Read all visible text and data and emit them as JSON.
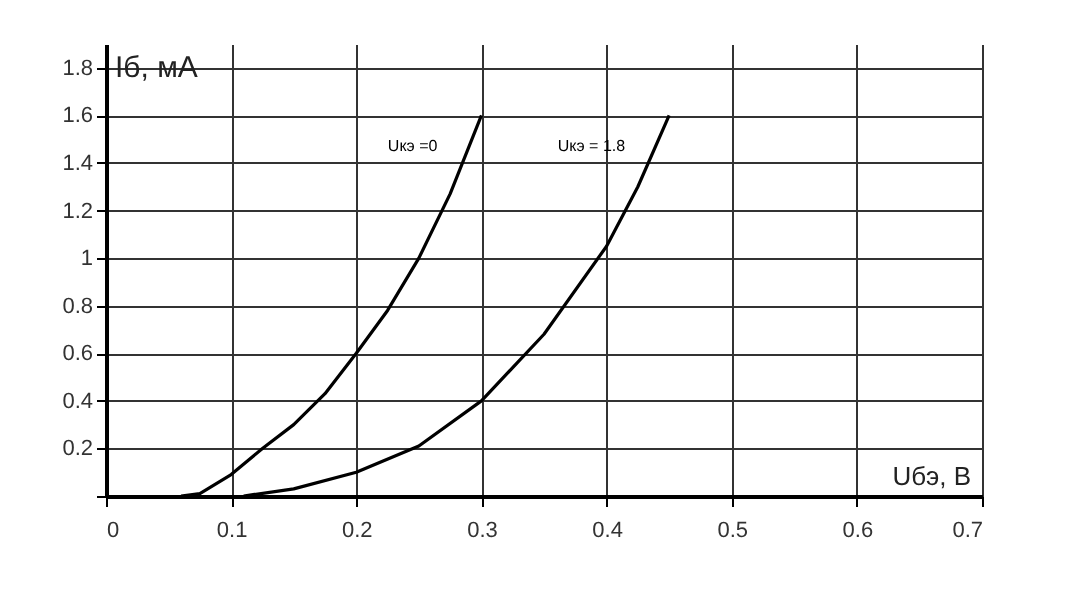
{
  "chart_data": {
    "type": "line",
    "xlabel": "Uбэ, В",
    "ylabel": "Iб, мА",
    "xlim": [
      0,
      0.7
    ],
    "ylim": [
      0,
      1.9
    ],
    "xticks": [
      0,
      0.1,
      0.2,
      0.3,
      0.4,
      0.5,
      0.6,
      0.7
    ],
    "yticks": [
      {
        "value": 0,
        "label": null
      },
      0.2,
      0.4,
      0.6,
      0.8,
      1,
      1.2,
      1.4,
      1.6,
      1.8
    ],
    "grid": true,
    "legend": false,
    "marker": "none",
    "line_style": "solid",
    "series": [
      {
        "name": "Uкэ =0",
        "color": "#000000",
        "x": [
          0.06,
          0.075,
          0.1,
          0.125,
          0.15,
          0.175,
          0.2,
          0.225,
          0.25,
          0.275,
          0.3
        ],
        "values": [
          0,
          0.01,
          0.09,
          0.2,
          0.3,
          0.43,
          0.6,
          0.78,
          1.0,
          1.27,
          1.6
        ]
      },
      {
        "name": "Uкэ = 1.8",
        "color": "#000000",
        "x": [
          0.11,
          0.15,
          0.2,
          0.25,
          0.3,
          0.35,
          0.4,
          0.425,
          0.45
        ],
        "values": [
          0,
          0.03,
          0.1,
          0.21,
          0.4,
          0.68,
          1.05,
          1.3,
          1.6
        ]
      }
    ]
  }
}
